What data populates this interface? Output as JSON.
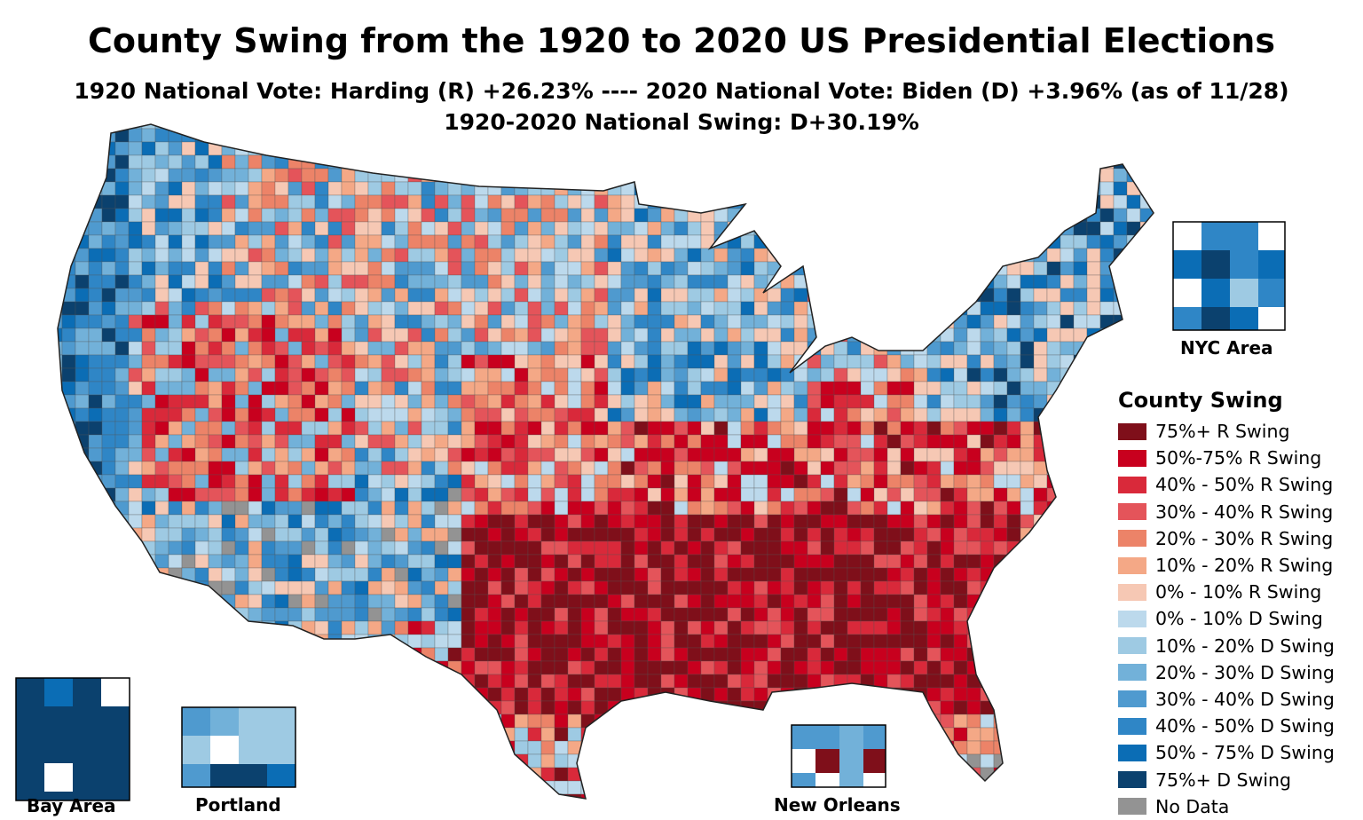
{
  "title": "County Swing from the 1920 to 2020 US Presidential Elections",
  "subtitle_line1": "1920 National Vote: Harding (R) +26.23% ---- 2020 National Vote: Biden (D) +3.96% (as of 11/28)",
  "subtitle_line2": "1920-2020 National Swing: D+30.19%",
  "insets": {
    "nyc": "NYC Area",
    "bay_area": "Bay Area",
    "portland": "Portland",
    "new_orleans": "New Orleans"
  },
  "legend": {
    "title": "County Swing",
    "items": [
      {
        "label": "75%+ R Swing",
        "color": "#7f0f1a"
      },
      {
        "label": "50%-75% R Swing",
        "color": "#c8001e"
      },
      {
        "label": "40% - 50% R Swing",
        "color": "#d9293a"
      },
      {
        "label": "30% - 40% R Swing",
        "color": "#e4545a"
      },
      {
        "label": "20% - 30% R Swing",
        "color": "#ec8368"
      },
      {
        "label": "10% - 20% R Swing",
        "color": "#f4a886"
      },
      {
        "label": "0% - 10% R Swing",
        "color": "#f6c8b4"
      },
      {
        "label": "0% - 10% D Swing",
        "color": "#bcd9ec"
      },
      {
        "label": "10% - 20% D Swing",
        "color": "#9ecae3"
      },
      {
        "label": "20% - 30% D Swing",
        "color": "#72b1d9"
      },
      {
        "label": "30% - 40% D Swing",
        "color": "#4f9acf"
      },
      {
        "label": "40% - 50% D Swing",
        "color": "#2f86c6"
      },
      {
        "label": "50% - 75% D Swing",
        "color": "#0b6db5"
      },
      {
        "label": "75%+ D Swing",
        "color": "#0b416e"
      },
      {
        "label": "No Data",
        "color": "#939393"
      }
    ]
  }
}
